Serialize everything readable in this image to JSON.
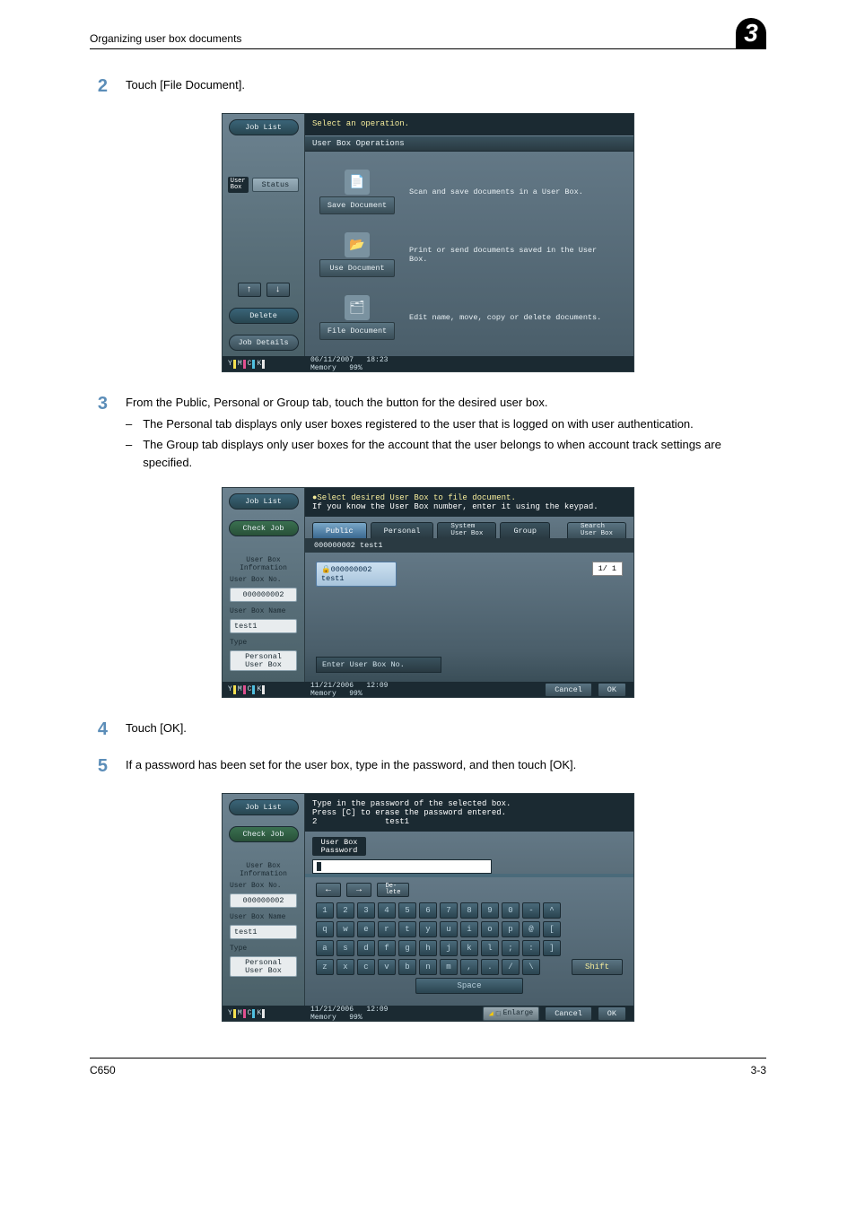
{
  "header": {
    "section_title": "Organizing user box documents",
    "chapter_number": "3"
  },
  "steps": {
    "2": {
      "text": "Touch [File Document]."
    },
    "3": {
      "text": "From the Public, Personal or Group tab, touch the button for the desired user box.",
      "sub": [
        "The Personal tab displays only user boxes registered to the user that is logged on with user authentication.",
        "The Group tab displays only user boxes for the account that the user belongs to when account track settings are specified."
      ]
    },
    "4": {
      "text": "Touch [OK]."
    },
    "5": {
      "text": "If a password has been set for the user box, type in the password, and then touch [OK]."
    }
  },
  "shot1": {
    "side": {
      "job_list": "Job List",
      "status": "Status",
      "userbox_small": "User\nBox",
      "delete": "Delete",
      "job_details": "Job Details"
    },
    "topbar": "Select an operation.",
    "strip": "User Box Operations",
    "ops": [
      {
        "btn": "Save Document",
        "desc": "Scan and save documents in a User Box."
      },
      {
        "btn": "Use Document",
        "desc": "Print or send documents saved in the User Box."
      },
      {
        "btn": "File Document",
        "desc": "Edit name, move, copy or delete documents."
      }
    ],
    "status": {
      "date": "06/11/2007",
      "time": "18:23",
      "mem_label": "Memory",
      "mem_val": "99%"
    }
  },
  "shot2": {
    "side": {
      "job_list": "Job List",
      "check_job": "Check Job",
      "info_label": "User Box\nInformation",
      "box_no_label": "User Box No.",
      "box_no_val": "000000002",
      "box_name_label": "User Box Name",
      "box_name_val": "test1",
      "type_label": "Type",
      "type_val": "Personal\nUser Box"
    },
    "topbar_line1": "Select desired User Box to file document.",
    "topbar_line2": "If you know the User Box number, enter it using the keypad.",
    "tabs": {
      "public": "Public",
      "personal": "Personal",
      "system": "System\nUser Box",
      "group": "Group",
      "search": "Search\nUser Box"
    },
    "substrip": "000000002  test1",
    "item": {
      "num": "000000002",
      "name": "test1"
    },
    "page_badge": "1/  1",
    "enter_label": "Enter User Box No.",
    "buttons": {
      "cancel": "Cancel",
      "ok": "OK"
    },
    "status": {
      "date": "11/21/2006",
      "time": "12:09",
      "mem_label": "Memory",
      "mem_val": "99%"
    }
  },
  "shot3": {
    "side": {
      "job_list": "Job List",
      "check_job": "Check Job",
      "info_label": "User Box\nInformation",
      "box_no_label": "User Box No.",
      "box_no_val": "000000002",
      "box_name_label": "User Box Name",
      "box_name_val": "test1",
      "type_label": "Type",
      "type_val": "Personal\nUser Box"
    },
    "topbar_line1": "Type in the password of the selected box.",
    "topbar_line2": "Press [C] to erase the password entered.",
    "topbar_line3_left": "2",
    "topbar_line3_right": "test1",
    "pwd_label": "User Box\nPassword",
    "delete_label": "De-\nlete",
    "rows": [
      [
        "1",
        "2",
        "3",
        "4",
        "5",
        "6",
        "7",
        "8",
        "9",
        "0",
        "-",
        "^"
      ],
      [
        "q",
        "w",
        "e",
        "r",
        "t",
        "y",
        "u",
        "i",
        "o",
        "p",
        "@",
        "["
      ],
      [
        "a",
        "s",
        "d",
        "f",
        "g",
        "h",
        "j",
        "k",
        "l",
        ";",
        ":",
        "]"
      ],
      [
        "z",
        "x",
        "c",
        "v",
        "b",
        "n",
        "m",
        ",",
        ".",
        "/",
        "\\"
      ]
    ],
    "shift": "Shift",
    "space": "Space",
    "enlarge": "Enlarge",
    "buttons": {
      "cancel": "Cancel",
      "ok": "OK"
    },
    "status": {
      "date": "11/21/2006",
      "time": "12:09",
      "mem_label": "Memory",
      "mem_val": "99%"
    }
  },
  "toner": {
    "y": {
      "label": "Y",
      "color": "#f5e050"
    },
    "m": {
      "label": "M",
      "color": "#e05090"
    },
    "c": {
      "label": "C",
      "color": "#50c0e0"
    },
    "k": {
      "label": "K",
      "color": "#e8e8e8"
    }
  },
  "footer": {
    "left": "C650",
    "right": "3-3"
  }
}
